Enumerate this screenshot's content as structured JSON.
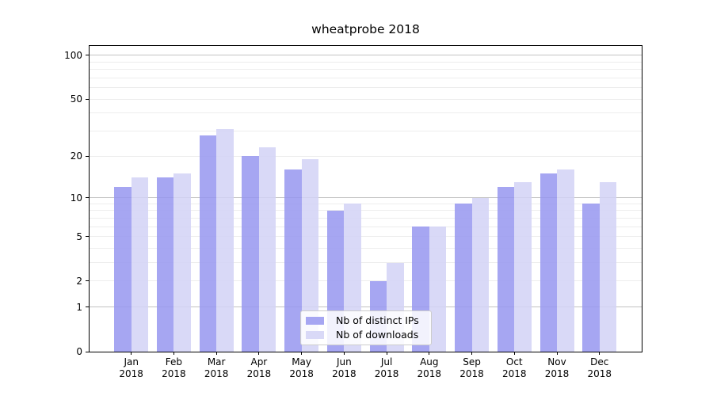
{
  "figure": {
    "title": "wheatprobe 2018"
  },
  "chart_data": {
    "type": "bar",
    "title": "wheatprobe 2018",
    "categories": [
      "Jan",
      "Feb",
      "Mar",
      "Apr",
      "May",
      "Jun",
      "Jul",
      "Aug",
      "Sep",
      "Oct",
      "Nov",
      "Dec"
    ],
    "year_label": "2018",
    "series": [
      {
        "name": "Nb of distinct IPs",
        "color": "#9696f0",
        "fill_alpha": 0.85,
        "values": [
          12,
          14,
          28,
          20,
          16,
          8,
          2,
          6,
          9,
          12,
          15,
          9
        ]
      },
      {
        "name": "Nb of downloads",
        "color": "#d2d2f6",
        "fill_alpha": 0.85,
        "values": [
          14,
          15,
          31,
          23,
          19,
          9,
          3,
          6,
          10,
          13,
          16,
          13
        ]
      }
    ],
    "xlabel": "",
    "ylabel": "",
    "yscale": "log1p",
    "ylim": [
      0,
      116
    ],
    "yticks": [
      0,
      1,
      2,
      5,
      10,
      20,
      50,
      100
    ],
    "grid": true,
    "grid_major_values": [
      1,
      10,
      100
    ],
    "grid_minor_values": [
      2,
      3,
      4,
      5,
      6,
      7,
      8,
      9,
      20,
      30,
      40,
      50,
      60,
      70,
      80,
      90
    ],
    "legend_position": "lower center"
  },
  "colors": {
    "background": "#ffffff",
    "spine": "#000000",
    "grid_major": "#c3c3c3",
    "grid_minor": "#ededed",
    "bar_distinct_ips": "#9696f0",
    "bar_downloads": "#d2d2f6",
    "legend_border": "#cccccc",
    "text": "#000000"
  }
}
